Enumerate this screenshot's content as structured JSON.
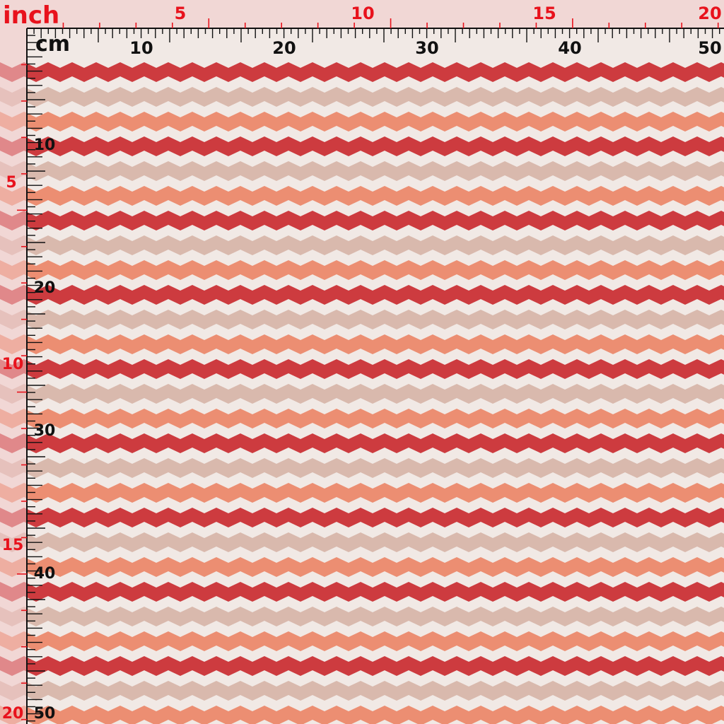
{
  "ruler": {
    "inch_unit_label": "inch",
    "cm_unit_label": "cm",
    "top_inch_labels": [
      "5",
      "10",
      "15",
      "20"
    ],
    "top_cm_labels": [
      "10",
      "20",
      "30",
      "40",
      "50"
    ],
    "left_inch_labels": [
      "5",
      "10",
      "15",
      "20"
    ],
    "left_cm_labels": [
      "10",
      "20",
      "30",
      "40",
      "50"
    ]
  },
  "pattern": {
    "name": "chevron-stripes",
    "stripe_colors": [
      "#cd3b3f",
      "#f1e9e5",
      "#d9b9ad",
      "#f1e9e5",
      "#ec8e72",
      "#f1e9e5"
    ],
    "inch_label_color": "#e8121c",
    "cm_label_color": "#111111"
  }
}
